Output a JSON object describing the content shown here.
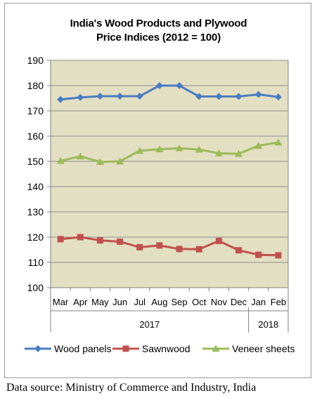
{
  "chart_data": {
    "type": "line",
    "title_line1": "India's Wood Products and Plywood",
    "title_line2": "Price Indices (2012 = 100)",
    "categories": [
      "Mar",
      "Apr",
      "May",
      "Jun",
      "Jul",
      "Aug",
      "Sep",
      "Oct",
      "Nov",
      "Dec",
      "Jan",
      "Feb"
    ],
    "year_groups": [
      {
        "label": "2017",
        "start": 0,
        "end": 9
      },
      {
        "label": "2018",
        "start": 10,
        "end": 11
      }
    ],
    "ylim": [
      100,
      190
    ],
    "yticks": [
      100,
      110,
      120,
      130,
      140,
      150,
      160,
      170,
      180,
      190
    ],
    "grid": true,
    "legend_position": "bottom",
    "plot_background": "#e3dfc2",
    "series": [
      {
        "name": "Wood panels",
        "color": "#4a7cc0",
        "marker": "diamond",
        "values": [
          174.5,
          175.3,
          175.8,
          175.8,
          175.8,
          180.0,
          180.0,
          175.7,
          175.7,
          175.7,
          176.5,
          175.5
        ]
      },
      {
        "name": "Sawnwood",
        "color": "#c0504d",
        "marker": "square",
        "values": [
          119.2,
          120.0,
          118.7,
          118.2,
          116.0,
          116.7,
          115.3,
          115.2,
          118.5,
          114.8,
          113.0,
          112.8
        ]
      },
      {
        "name": "Veneer sheets",
        "color": "#9bbb59",
        "marker": "triangle",
        "values": [
          150.2,
          152.0,
          149.8,
          150.0,
          154.2,
          154.8,
          155.2,
          154.7,
          153.2,
          153.0,
          156.2,
          157.5
        ]
      }
    ]
  },
  "source_text": "Data source: Ministry of Commerce and Industry, India"
}
